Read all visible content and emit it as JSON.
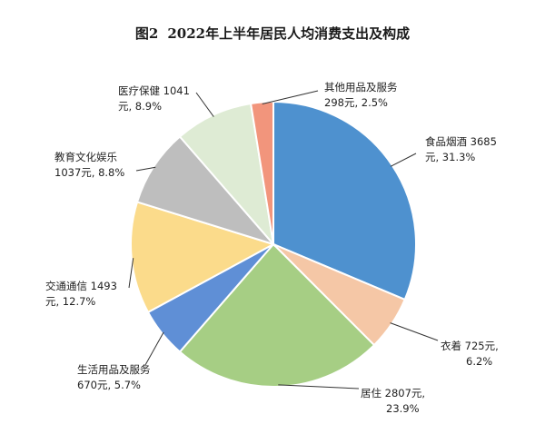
{
  "chart_data": {
    "type": "pie",
    "title_number": "图2",
    "title": "2022年上半年居民人均消费支出及构成",
    "start_angle_deg": 90,
    "direction": "clockwise",
    "slices": [
      {
        "label": "食品烟酒",
        "value": 3685,
        "percent": 31.3,
        "label_line1": "食品烟酒 3685",
        "label_line2": "元, 31.3%",
        "color": "#4E91CF"
      },
      {
        "label": "衣着",
        "value": 725,
        "percent": 6.2,
        "label_line1": "衣着 725元,",
        "label_line2": "6.2%",
        "color": "#F5C7A6"
      },
      {
        "label": "居住",
        "value": 2807,
        "percent": 23.9,
        "label_line1": "居住 2807元,",
        "label_line2": "23.9%",
        "color": "#A6CE84"
      },
      {
        "label": "生活用品及服务",
        "value": 670,
        "percent": 5.7,
        "label_line1": "生活用品及服务",
        "label_line2": "670元, 5.7%",
        "color": "#5F8FD6"
      },
      {
        "label": "交通通信",
        "value": 1493,
        "percent": 12.7,
        "label_line1": "交通通信 1493",
        "label_line2": "元, 12.7%",
        "color": "#FBDB8B"
      },
      {
        "label": "教育文化娱乐",
        "value": 1037,
        "percent": 8.8,
        "label_line1": "教育文化娱乐",
        "label_line2": "1037元, 8.8%",
        "color": "#BEBEBE"
      },
      {
        "label": "医疗保健",
        "value": 1041,
        "percent": 8.9,
        "label_line1": "医疗保健 1041",
        "label_line2": "元, 8.9%",
        "color": "#DEEBD4"
      },
      {
        "label": "其他用品及服务",
        "value": 298,
        "percent": 2.5,
        "label_line1": "其他用品及服务",
        "label_line2": "298元, 2.5%",
        "color": "#F2957C"
      }
    ]
  }
}
